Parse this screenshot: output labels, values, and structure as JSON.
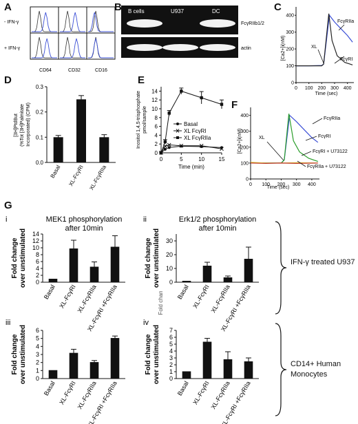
{
  "panels": {
    "A": {
      "letter": "A",
      "row_labels": [
        "- IFN-γ",
        "+ IFN-γ"
      ],
      "col_labels": [
        "CD64",
        "CD32",
        "CD16"
      ]
    },
    "B": {
      "letter": "B",
      "lane_labels": [
        "B cells",
        "U937",
        "DC"
      ],
      "band_labels": [
        "FcγRIIb1/2",
        "actin"
      ]
    },
    "C": {
      "letter": "C",
      "ylabel": "[Ca2+]i(nM)",
      "xlabel": "Time (sec)",
      "labels": [
        "FcγRIIa",
        "XL",
        "FcγRI"
      ]
    },
    "D": {
      "letter": "D"
    },
    "E": {
      "letter": "E"
    },
    "F": {
      "letter": "F",
      "ylabel": "[Ca2+]i(nM)",
      "xlabel": "Time (sec)",
      "labels": [
        "FcγRIIa",
        "FcγRI",
        "XL",
        "FcγRI + U73122",
        "FcγRIIa + U73122"
      ]
    },
    "G": {
      "letter": "G",
      "group_labels": [
        "IFN-γ treated U937",
        "CD14+ Human Monocytes"
      ]
    }
  },
  "chart_data": [
    {
      "id": "D",
      "type": "bar",
      "ylabel": "[3H]PtdBut (%Tot [3H]Palmitate Incorporated) (CPM)",
      "categories": [
        "Basal",
        "XL-FcγRI",
        "XL-FcγRIIa"
      ],
      "values": [
        0.1,
        0.25,
        0.1
      ],
      "errors": [
        0.007,
        0.015,
        0.01
      ],
      "ylim": [
        0,
        0.3
      ],
      "yticks": [
        "0.0",
        "0.1",
        "0.2",
        "0.3"
      ]
    },
    {
      "id": "E",
      "type": "line",
      "ylabel": "Inositol 1,4,5-trisphosphate pmol/sample",
      "xlabel": "Time (min)",
      "x": [
        0,
        1,
        2,
        5,
        10,
        15
      ],
      "series": [
        {
          "name": "Basal",
          "values": [
            0,
            0.8,
            1.2,
            1.5,
            1.4,
            1.2
          ]
        },
        {
          "name": "XL FcγRI",
          "values": [
            0,
            1.5,
            1.8,
            1.6,
            1.6,
            0.9
          ]
        },
        {
          "name": "XL FcγRIIa",
          "values": [
            0,
            2.5,
            9.0,
            14.0,
            12.5,
            11.0
          ]
        }
      ],
      "errors": [
        0.3,
        0.5,
        0.6,
        0.7,
        1.4,
        1.0
      ],
      "xlim": [
        0,
        15
      ],
      "ylim": [
        0,
        15
      ],
      "xticks": [
        "0",
        "5",
        "10",
        "15"
      ],
      "yticks": [
        "0",
        "2",
        "4",
        "6",
        "8",
        "10",
        "12",
        "14"
      ]
    },
    {
      "id": "Gi",
      "type": "bar",
      "roman": "i",
      "title": "MEK1 phosphorylation after 10min",
      "ylabel": "Fold change over unstimulated",
      "categories": [
        "Basal",
        "XL-FcγRI",
        "XL-FcγRIIa",
        "XL-FcγRI +FcγRIIa"
      ],
      "values": [
        1,
        9.8,
        4.5,
        10.3
      ],
      "errors": [
        0,
        2.4,
        1.4,
        3.2
      ],
      "ylim": [
        0,
        14
      ],
      "yticks": [
        "0",
        "2",
        "4",
        "6",
        "8",
        "10",
        "12",
        "14"
      ]
    },
    {
      "id": "Gii",
      "type": "bar",
      "roman": "ii",
      "title": "Erk1/2 phosphorylation after 10min",
      "ylabel": "Fold change over unstimulated",
      "ylabel2": "Fold chan",
      "categories": [
        "Basal",
        "XL-FcγRI",
        "XL-FcγRIIa",
        "XL-FcγRI +FcγRIIa"
      ],
      "values": [
        1,
        12,
        3.5,
        17
      ],
      "errors": [
        0,
        2.5,
        1,
        8.5
      ],
      "ylim": [
        0,
        35
      ],
      "yticks": [
        "0",
        "10",
        "20",
        "30"
      ]
    },
    {
      "id": "Giii",
      "type": "bar",
      "roman": "iii",
      "ylabel": "Fold change over unstimulated",
      "categories": [
        "Basal",
        "XL-FcγRI",
        "XL-FcγRIIa",
        "XL-FcγRI +FcγRIIa"
      ],
      "values": [
        1.05,
        3.2,
        2.05,
        5.05
      ],
      "errors": [
        0,
        0.45,
        0.2,
        0.25
      ],
      "ylim": [
        0,
        6
      ],
      "yticks": [
        "0",
        "1",
        "2",
        "3",
        "4",
        "5",
        "6"
      ]
    },
    {
      "id": "Giv",
      "type": "bar",
      "roman": "iv",
      "ylabel": "Fold change over unstimulated",
      "categories": [
        "Basal",
        "XL-FcγRI",
        "XL-FcγRIIa",
        "XL-FcγRI +FcγRIIa"
      ],
      "values": [
        1.05,
        5.35,
        2.8,
        2.5
      ],
      "errors": [
        0,
        0.5,
        1.1,
        0.5
      ],
      "ylim": [
        0,
        7
      ],
      "yticks": [
        "0",
        "1",
        "2",
        "3",
        "4",
        "5",
        "6",
        "7"
      ]
    },
    {
      "id": "C",
      "type": "line",
      "xticks": [
        "0",
        "100",
        "200",
        "300",
        "400"
      ],
      "yticks": [
        "0",
        "100",
        "200",
        "300",
        "400"
      ],
      "xlim": [
        0,
        450
      ],
      "ylim": [
        0,
        450
      ],
      "series": [
        {
          "name": "FcγRIIa",
          "color": "#3b4fd6",
          "x": [
            0,
            100,
            200,
            215,
            260,
            300,
            350,
            400,
            440
          ],
          "values": [
            100,
            100,
            102,
            110,
            400,
            360,
            320,
            280,
            240
          ]
        },
        {
          "name": "FcγRI",
          "color": "#222222",
          "x": [
            0,
            100,
            200,
            215,
            255,
            280,
            320,
            380,
            440
          ],
          "values": [
            100,
            100,
            100,
            110,
            410,
            250,
            160,
            120,
            105
          ]
        }
      ]
    },
    {
      "id": "F",
      "type": "line",
      "xticks": [
        "0",
        "100",
        "200",
        "300",
        "400"
      ],
      "yticks": [
        "0",
        "100",
        "200",
        "300",
        "400"
      ],
      "xlim": [
        0,
        450
      ],
      "ylim": [
        0,
        450
      ],
      "series": [
        {
          "name": "FcγRIIa",
          "color": "#3b4fd6",
          "x": [
            0,
            100,
            200,
            220,
            255,
            300,
            350,
            400,
            440
          ],
          "values": [
            100,
            100,
            100,
            120,
            400,
            360,
            310,
            260,
            230
          ]
        },
        {
          "name": "FcγRI",
          "color": "#2a9d2a",
          "x": [
            0,
            100,
            200,
            220,
            250,
            280,
            320,
            380,
            440
          ],
          "values": [
            100,
            100,
            100,
            120,
            410,
            240,
            170,
            130,
            110
          ]
        },
        {
          "name": "FcγRI + U73122",
          "color": "#d8c43a",
          "x": [
            0,
            100,
            200,
            300,
            440
          ],
          "values": [
            105,
            100,
            100,
            102,
            100
          ]
        },
        {
          "name": "FcγRIIa + U73122",
          "color": "#c0392b",
          "x": [
            0,
            100,
            200,
            300,
            440
          ],
          "values": [
            100,
            98,
            100,
            98,
            100
          ]
        }
      ]
    }
  ]
}
